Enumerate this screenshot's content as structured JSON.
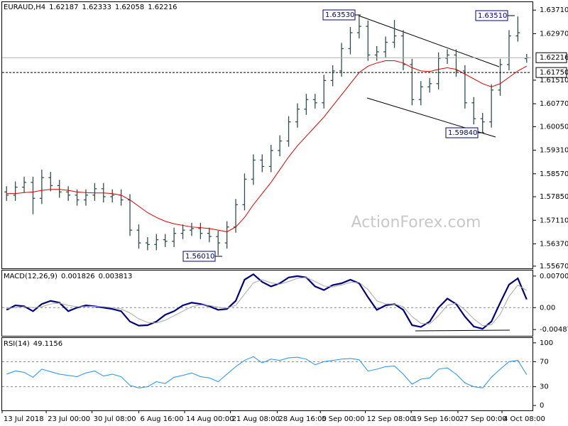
{
  "chart_data": [
    {
      "type": "ohlc",
      "title": "EURAUD,H4",
      "watermark": "ActionForex.com",
      "color": "#2f4f4f",
      "xlim": [
        -0.5,
        59.5
      ],
      "open": [
        1.58,
        1.579,
        1.5815,
        1.583,
        1.578,
        1.5845,
        1.582,
        1.58,
        1.579,
        1.5775,
        1.579,
        1.581,
        1.5785,
        1.579,
        1.5775,
        1.568,
        1.564,
        1.5635,
        1.565,
        1.5645,
        1.567,
        1.568,
        1.5685,
        1.567,
        1.566,
        1.564,
        1.569,
        1.576,
        1.584,
        1.59,
        1.588,
        1.593,
        1.596,
        1.602,
        1.606,
        1.609,
        1.608,
        1.615,
        1.618,
        1.625,
        1.63,
        1.632,
        1.623,
        1.624,
        1.627,
        1.629,
        1.62,
        1.609,
        1.613,
        1.614,
        1.622,
        1.623,
        1.618,
        1.608,
        1.603,
        1.602,
        1.612,
        1.62,
        1.629,
        1.62187
      ],
      "high": [
        1.5818,
        1.5833,
        1.5848,
        1.5848,
        1.587,
        1.5863,
        1.5838,
        1.5818,
        1.5808,
        1.5808,
        1.5828,
        1.5828,
        1.5808,
        1.5808,
        1.5793,
        1.5698,
        1.5658,
        1.5668,
        1.5668,
        1.5688,
        1.5698,
        1.5703,
        1.5703,
        1.5688,
        1.5678,
        1.5708,
        1.5778,
        1.5858,
        1.5918,
        1.5918,
        1.5948,
        1.5978,
        1.6038,
        1.6078,
        1.6108,
        1.6108,
        1.6168,
        1.6198,
        1.6268,
        1.6318,
        1.6353,
        1.6338,
        1.6258,
        1.6288,
        1.634,
        1.6308,
        1.6218,
        1.6148,
        1.6158,
        1.6238,
        1.6248,
        1.6248,
        1.6198,
        1.6098,
        1.6048,
        1.6138,
        1.6218,
        1.6308,
        1.6351,
        1.62333
      ],
      "low": [
        1.5772,
        1.5772,
        1.5797,
        1.573,
        1.5762,
        1.5802,
        1.5782,
        1.5772,
        1.5757,
        1.5757,
        1.5772,
        1.5767,
        1.5767,
        1.5757,
        1.5662,
        1.5622,
        1.5617,
        1.5617,
        1.5627,
        1.5627,
        1.5652,
        1.5662,
        1.5652,
        1.5642,
        1.5601,
        1.5622,
        1.5672,
        1.5742,
        1.5822,
        1.5862,
        1.5862,
        1.5912,
        1.5942,
        1.6002,
        1.6042,
        1.6062,
        1.6062,
        1.6132,
        1.6162,
        1.6232,
        1.6282,
        1.6212,
        1.6212,
        1.6222,
        1.6252,
        1.6182,
        1.6072,
        1.6072,
        1.6112,
        1.6122,
        1.6202,
        1.6162,
        1.6062,
        1.6012,
        1.5984,
        1.6002,
        1.6102,
        1.6182,
        1.6272,
        1.62058
      ],
      "close": [
        1.579,
        1.5815,
        1.583,
        1.578,
        1.5845,
        1.582,
        1.58,
        1.579,
        1.5775,
        1.579,
        1.581,
        1.5785,
        1.579,
        1.5775,
        1.568,
        1.564,
        1.5635,
        1.565,
        1.5645,
        1.567,
        1.568,
        1.5685,
        1.567,
        1.566,
        1.564,
        1.569,
        1.576,
        1.584,
        1.59,
        1.588,
        1.593,
        1.596,
        1.602,
        1.606,
        1.609,
        1.608,
        1.615,
        1.618,
        1.625,
        1.63,
        1.632,
        1.623,
        1.624,
        1.627,
        1.629,
        1.62,
        1.609,
        1.613,
        1.614,
        1.622,
        1.623,
        1.618,
        1.608,
        1.603,
        1.602,
        1.612,
        1.62,
        1.629,
        1.63,
        1.62216
      ],
      "ma": {
        "color": "#e00000",
        "values": [
          1.5795,
          1.5795,
          1.5798,
          1.58,
          1.5805,
          1.5808,
          1.5808,
          1.5805,
          1.58,
          1.5798,
          1.5797,
          1.5797,
          1.5795,
          1.579,
          1.5775,
          1.5755,
          1.5735,
          1.572,
          1.5708,
          1.57,
          1.5695,
          1.569,
          1.5688,
          1.5685,
          1.568,
          1.5675,
          1.569,
          1.572,
          1.576,
          1.5795,
          1.583,
          1.587,
          1.591,
          1.5945,
          1.5975,
          1.6005,
          1.6035,
          1.607,
          1.6105,
          1.614,
          1.6175,
          1.6195,
          1.6205,
          1.6212,
          1.6212,
          1.6205,
          1.619,
          1.618,
          1.6178,
          1.6185,
          1.619,
          1.6185,
          1.617,
          1.6155,
          1.614,
          1.613,
          1.614,
          1.616,
          1.618,
          1.6195
        ]
      },
      "ylim": [
        1.556,
        1.6396
      ],
      "yticks": [
        {
          "value": 1.6371,
          "label": "1.63710"
        },
        {
          "value": 1.6297,
          "label": "1.62970"
        },
        {
          "value": 1.6151,
          "label": "1.61510"
        },
        {
          "value": 1.6077,
          "label": "1.60770"
        },
        {
          "value": 1.6005,
          "label": "1.60050"
        },
        {
          "value": 1.5931,
          "label": "1.59310"
        },
        {
          "value": 1.5857,
          "label": "1.58570"
        },
        {
          "value": 1.5785,
          "label": "1.57850"
        },
        {
          "value": 1.5711,
          "label": "1.57110"
        },
        {
          "value": 1.5637,
          "label": "1.56370"
        },
        {
          "value": 1.5567,
          "label": "1.55670"
        }
      ],
      "price_lines": [
        {
          "value": 1.62216,
          "label": "1.62216"
        },
        {
          "value": 1.6175,
          "label": "1.61750"
        }
      ],
      "annotations": [
        "1.63530",
        "1.63510",
        "1.59840",
        "1.56010"
      ]
    },
    {
      "type": "line",
      "title": "MACD(12,26,9)",
      "xlim": [
        -0.5,
        59.5
      ],
      "series": [
        {
          "color": "#000080",
          "values": [
            -0.0005,
            0.0005,
            0.0003,
            -0.0008,
            0.0008,
            0.0015,
            0.0011,
            -0.0008,
            0,
            0.0005,
            0.0003,
            0,
            -0.0003,
            -0.0008,
            -0.0031,
            -0.004,
            -0.0039,
            -0.0031,
            -0.0016,
            -0.0008,
            0.0005,
            0.0011,
            0.0008,
            0.0003,
            -0.0005,
            -0.0003,
            0.0015,
            0.0062,
            0.0074,
            0.0057,
            0.0047,
            0.0054,
            0.0067,
            0.007,
            0.0067,
            0.0047,
            0.0039,
            0.005,
            0.0054,
            0.0062,
            0.0054,
            0.0023,
            -0.0005,
            0.0005,
            0.0008,
            -0.0005,
            -0.0039,
            -0.0043,
            -0.0031,
            0,
            0.002,
            0.0008,
            -0.002,
            -0.0042,
            -0.0047,
            -0.0031,
            0.0011,
            0.0051,
            0.0065,
            0.001826
          ]
        },
        {
          "color": "#a8a8a8",
          "values": [
            -0.0002,
            0,
            0.0002,
            0,
            0.0002,
            0.0008,
            0.001,
            0.0005,
            0.0002,
            0.0002,
            0.0003,
            0.0002,
            0,
            -0.0003,
            -0.0012,
            -0.0025,
            -0.0033,
            -0.0034,
            -0.0028,
            -0.0018,
            -0.0008,
            0.0002,
            0.0006,
            0.0005,
            0.0001,
            -0.0001,
            0.0005,
            0.003,
            0.0055,
            0.0062,
            0.0055,
            0.0052,
            0.0058,
            0.0065,
            0.0067,
            0.0058,
            0.0048,
            0.0046,
            0.005,
            0.0056,
            0.0056,
            0.004,
            0.0015,
            0.0008,
            0.0008,
            0.0002,
            -0.002,
            -0.0035,
            -0.0036,
            -0.0018,
            0.0005,
            0.001,
            -0.0005,
            -0.0025,
            -0.004,
            -0.0038,
            -0.0015,
            0.0025,
            0.005,
            0.003813
          ]
        }
      ],
      "ylim": [
        -0.00611,
        0.00824
      ],
      "yticks": [
        0.007003,
        {
          "value": 0,
          "label": "0.00"
        },
        -0.004873
      ],
      "levels": [
        0
      ]
    },
    {
      "type": "line",
      "title": "RSI(14)",
      "xlim": [
        -0.5,
        59.5
      ],
      "series": [
        {
          "color": "#1e90ff",
          "values": [
            50,
            55,
            53,
            45,
            58,
            54,
            50,
            48,
            46,
            52,
            55,
            47,
            50,
            46,
            32,
            28,
            30,
            38,
            35,
            45,
            48,
            52,
            46,
            44,
            38,
            50,
            62,
            72,
            78,
            68,
            74,
            72,
            76,
            77,
            74,
            65,
            70,
            72,
            74,
            75,
            73,
            55,
            58,
            62,
            63,
            50,
            34,
            42,
            44,
            58,
            60,
            50,
            36,
            30,
            28,
            45,
            58,
            70,
            72,
            49.1156
          ]
        }
      ],
      "ylim": [
        -6.7,
        107.8
      ],
      "yticks": [
        100,
        70,
        30,
        0
      ],
      "levels": [
        30,
        70
      ],
      "xticks": [
        {
          "value": -0.5,
          "label": "13 Jul 2018"
        },
        {
          "value": 4.5,
          "label": "23 Jul 00:00"
        },
        {
          "value": 9.7,
          "label": "30 Jul 08:00"
        },
        {
          "value": 15,
          "label": "6 Aug 16:00"
        },
        {
          "value": 20.2,
          "label": "14 Aug 00:00"
        },
        {
          "value": 25.4,
          "label": "21 Aug 08:00"
        },
        {
          "value": 30.7,
          "label": "28 Aug 16:00"
        },
        {
          "value": 35.6,
          "label": "5 Sep 00:00"
        },
        {
          "value": 40.7,
          "label": "12 Sep 08:00"
        },
        {
          "value": 45.9,
          "label": "19 Sep 16:00"
        },
        {
          "value": 51.2,
          "label": "27 Sep 00:00"
        },
        {
          "value": 56.2,
          "label": "4 Oct 08:00"
        }
      ]
    }
  ]
}
